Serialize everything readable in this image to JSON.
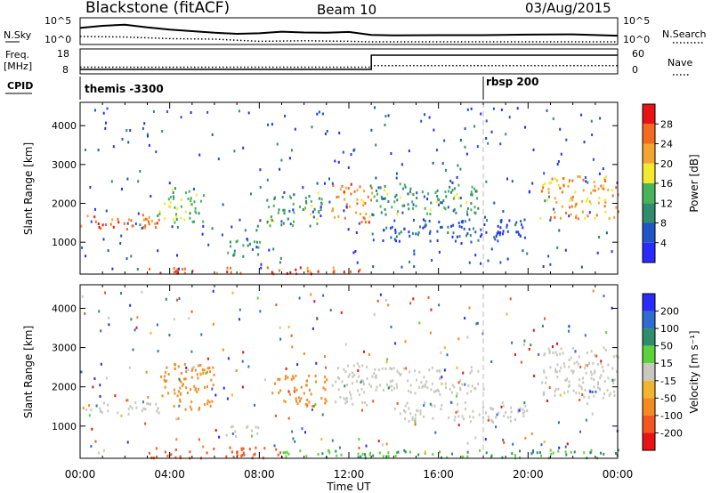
{
  "header": {
    "station": "Blackstone (fitACF)",
    "beam": "Beam 10",
    "date": "03/Aug/2015"
  },
  "strip_labels": {
    "nsky": "N.Sky",
    "nsky_ticks": [
      "10^5",
      "10^0"
    ],
    "nsearch": "N.Search",
    "nsearch_ticks": [
      "10^5",
      "10^0"
    ],
    "freq_line1": "Freq.",
    "freq_line2": "[MHz]",
    "freq_ticks": [
      "18",
      "8"
    ],
    "nave": "Nave",
    "nave_ticks": [
      "60",
      "0"
    ],
    "cpid": "CPID"
  },
  "cpid_segments": [
    {
      "label": "themis -3300",
      "start_hour": 0.0
    },
    {
      "label": "rbsp 200",
      "start_hour": 18.0
    }
  ],
  "x_axis": {
    "label": "Time UT",
    "ticks": [
      "00:00",
      "04:00",
      "08:00",
      "12:00",
      "16:00",
      "20:00",
      "00:00"
    ],
    "range_hours": [
      0,
      24
    ]
  },
  "y_axis": {
    "label": "Slant Range [km]",
    "ticks": [
      "1000",
      "2000",
      "3000",
      "4000"
    ],
    "range_km": [
      180,
      4600
    ]
  },
  "colorbars": {
    "power": {
      "label": "Power [dB]",
      "ticks": [
        "4",
        "8",
        "12",
        "16",
        "20",
        "24",
        "28"
      ],
      "colors": [
        "#2a2aff",
        "#1f55c8",
        "#2f8c6c",
        "#46b45a",
        "#f3e92f",
        "#f4a531",
        "#f46b1f",
        "#e81414"
      ]
    },
    "velocity": {
      "label": "Velocity [m s⁻¹]",
      "ticks": [
        "200",
        "100",
        "50",
        "15",
        "-15",
        "-50",
        "-100",
        "-200"
      ],
      "colors": [
        "#2a2aff",
        "#2f6ccf",
        "#2f8c6c",
        "#5dd33a",
        "#c8c8c0",
        "#f3b52f",
        "#f48a21",
        "#f4561f",
        "#e81414"
      ]
    }
  },
  "chart_data": {
    "type": "heatmap",
    "title": "Blackstone (fitACF)",
    "xlabel": "Time UT",
    "ylabel": "Slant Range [km]",
    "xlim_hours": [
      0,
      24
    ],
    "ylim_km": [
      180,
      4600
    ],
    "nsky_series": [
      [
        0.0,
        0.62
      ],
      [
        1.0,
        0.7
      ],
      [
        2.0,
        0.74
      ],
      [
        3.0,
        0.64
      ],
      [
        4.0,
        0.56
      ],
      [
        5.0,
        0.5
      ],
      [
        6.0,
        0.44
      ],
      [
        7.0,
        0.4
      ],
      [
        8.0,
        0.42
      ],
      [
        9.0,
        0.48
      ],
      [
        10.0,
        0.45
      ],
      [
        11.0,
        0.44
      ],
      [
        12.0,
        0.47
      ],
      [
        13.0,
        0.36
      ],
      [
        14.0,
        0.34
      ],
      [
        16.0,
        0.35
      ],
      [
        18.0,
        0.35
      ],
      [
        20.0,
        0.37
      ],
      [
        22.0,
        0.38
      ],
      [
        24.0,
        0.33
      ]
    ],
    "nsearch_series": [
      [
        0.0,
        0.3
      ],
      [
        2.0,
        0.28
      ],
      [
        4.0,
        0.22
      ],
      [
        6.0,
        0.2
      ],
      [
        8.0,
        0.12
      ],
      [
        10.0,
        0.14
      ],
      [
        12.0,
        0.12
      ],
      [
        13.0,
        0.1
      ],
      [
        16.0,
        0.1
      ],
      [
        20.0,
        0.1
      ],
      [
        24.0,
        0.1
      ]
    ],
    "frequency_mhz": [
      [
        0.0,
        9.8
      ],
      [
        13.0,
        9.8
      ],
      [
        13.0,
        15.5
      ],
      [
        24.0,
        15.5
      ]
    ],
    "nave": [
      [
        0.0,
        16
      ],
      [
        13.0,
        16
      ],
      [
        13.0,
        20
      ],
      [
        24.0,
        20
      ]
    ],
    "power_echoes": [
      {
        "t0": 0.0,
        "t1": 3.5,
        "r0": 1300,
        "r1": 1700,
        "power_db": 26
      },
      {
        "t0": 3.5,
        "t1": 5.5,
        "r0": 1500,
        "r1": 2400,
        "power_db": 14
      },
      {
        "t0": 6.5,
        "t1": 8.0,
        "r0": 600,
        "r1": 1100,
        "power_db": 12
      },
      {
        "t0": 8.3,
        "t1": 10.8,
        "r0": 1400,
        "r1": 2300,
        "power_db": 12
      },
      {
        "t0": 11.2,
        "t1": 13.0,
        "r0": 1500,
        "r1": 2500,
        "power_db": 24
      },
      {
        "t0": 13.0,
        "t1": 18.0,
        "r0": 1700,
        "r1": 2500,
        "power_db": 12
      },
      {
        "t0": 13.5,
        "t1": 20.0,
        "r0": 1000,
        "r1": 1600,
        "power_db": 6
      },
      {
        "t0": 20.5,
        "t1": 24.0,
        "r0": 1600,
        "r1": 2700,
        "power_db": 22
      },
      {
        "t0": 3.0,
        "t1": 12.5,
        "r0": 180,
        "r1": 350,
        "power_db": 28
      }
    ],
    "velocity_echoes": [
      {
        "t0": 0.0,
        "t1": 3.5,
        "r0": 1300,
        "r1": 1600,
        "velocity_ms": 0
      },
      {
        "t0": 3.5,
        "t1": 6.0,
        "r0": 1400,
        "r1": 2600,
        "velocity_ms": -50
      },
      {
        "t0": 6.5,
        "t1": 8.0,
        "r0": 700,
        "r1": 1000,
        "velocity_ms": 0
      },
      {
        "t0": 8.5,
        "t1": 11.0,
        "r0": 1500,
        "r1": 2300,
        "velocity_ms": -40
      },
      {
        "t0": 11.2,
        "t1": 13.0,
        "r0": 1500,
        "r1": 2600,
        "velocity_ms": 0
      },
      {
        "t0": 13.0,
        "t1": 18.0,
        "r0": 1800,
        "r1": 2500,
        "velocity_ms": 0
      },
      {
        "t0": 14.0,
        "t1": 20.0,
        "r0": 1100,
        "r1": 1600,
        "velocity_ms": 0
      },
      {
        "t0": 20.5,
        "t1": 24.0,
        "r0": 1700,
        "r1": 3000,
        "velocity_ms": 0
      },
      {
        "t0": 3.0,
        "t1": 9.0,
        "r0": 180,
        "r1": 450,
        "velocity_ms": -120
      },
      {
        "t0": 9.0,
        "t1": 24.0,
        "r0": 180,
        "r1": 400,
        "velocity_ms": 30
      }
    ]
  }
}
